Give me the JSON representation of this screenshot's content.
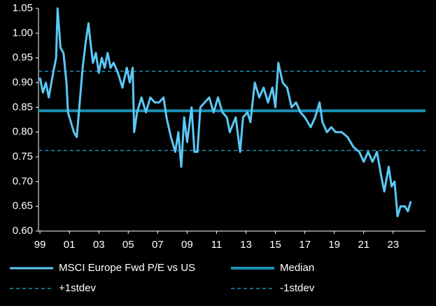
{
  "chart_data": {
    "type": "line",
    "x": [
      1999.0,
      1999.2,
      1999.4,
      1999.6,
      1999.9,
      2000.1,
      2000.2,
      2000.4,
      2000.6,
      2000.8,
      2000.9,
      2001.1,
      2001.3,
      2001.5,
      2001.7,
      2001.9,
      2002.1,
      2002.3,
      2002.4,
      2002.6,
      2002.8,
      2003.0,
      2003.2,
      2003.4,
      2003.6,
      2003.8,
      2004.0,
      2004.3,
      2004.6,
      2004.9,
      2005.1,
      2005.3,
      2005.4,
      2005.6,
      2005.9,
      2006.2,
      2006.5,
      2006.8,
      2007.1,
      2007.4,
      2007.6,
      2007.9,
      2008.2,
      2008.4,
      2008.6,
      2008.8,
      2009.0,
      2009.3,
      2009.5,
      2009.7,
      2009.9,
      2010.2,
      2010.5,
      2010.8,
      2011.1,
      2011.4,
      2011.7,
      2011.9,
      2012.3,
      2012.6,
      2012.8,
      2013.1,
      2013.3,
      2013.6,
      2013.9,
      2014.2,
      2014.5,
      2014.8,
      2015.0,
      2015.2,
      2015.5,
      2015.8,
      2016.1,
      2016.4,
      2016.7,
      2017.0,
      2017.4,
      2017.7,
      2018.0,
      2018.2,
      2018.5,
      2018.8,
      2019.1,
      2019.5,
      2019.9,
      2020.3,
      2020.7,
      2021.0,
      2021.3,
      2021.6,
      2021.9,
      2022.2,
      2022.4,
      2022.7,
      2022.9,
      2023.1,
      2023.3,
      2023.5,
      2023.8,
      2024.0,
      2024.2
    ],
    "series": [
      {
        "name": "MSCI Europe Fwd P/E vs US",
        "color": "#5bc8f5",
        "values": [
          0.91,
          0.88,
          0.9,
          0.87,
          0.92,
          0.95,
          1.05,
          0.97,
          0.96,
          0.9,
          0.84,
          0.82,
          0.8,
          0.79,
          0.86,
          0.93,
          0.98,
          1.02,
          0.99,
          0.94,
          0.96,
          0.92,
          0.95,
          0.93,
          0.96,
          0.93,
          0.94,
          0.92,
          0.89,
          0.93,
          0.9,
          0.93,
          0.8,
          0.84,
          0.87,
          0.84,
          0.87,
          0.86,
          0.86,
          0.87,
          0.83,
          0.79,
          0.76,
          0.8,
          0.73,
          0.83,
          0.78,
          0.85,
          0.76,
          0.76,
          0.85,
          0.86,
          0.87,
          0.84,
          0.87,
          0.84,
          0.83,
          0.8,
          0.83,
          0.76,
          0.83,
          0.84,
          0.82,
          0.9,
          0.87,
          0.89,
          0.86,
          0.89,
          0.85,
          0.94,
          0.9,
          0.89,
          0.85,
          0.86,
          0.84,
          0.83,
          0.81,
          0.83,
          0.86,
          0.82,
          0.8,
          0.81,
          0.8,
          0.8,
          0.79,
          0.77,
          0.76,
          0.74,
          0.76,
          0.74,
          0.76,
          0.71,
          0.68,
          0.73,
          0.69,
          0.7,
          0.63,
          0.65,
          0.65,
          0.64,
          0.66
        ]
      }
    ],
    "reference_lines": [
      {
        "name": "Median",
        "value": 0.843,
        "color": "#1b8fb5",
        "dashed": false
      },
      {
        "name": "+1stdev",
        "value": 0.923,
        "color": "#1b8fb5",
        "dashed": true
      },
      {
        "name": "-1stdev",
        "value": 0.763,
        "color": "#1b8fb5",
        "dashed": true
      }
    ],
    "xlim": [
      1998.9,
      2025.2
    ],
    "xticks": [
      {
        "value": 1999,
        "label": "99"
      },
      {
        "value": 2001,
        "label": "01"
      },
      {
        "value": 2003,
        "label": "03"
      },
      {
        "value": 2005,
        "label": "05"
      },
      {
        "value": 2007,
        "label": "07"
      },
      {
        "value": 2009,
        "label": "09"
      },
      {
        "value": 2011,
        "label": "11"
      },
      {
        "value": 2013,
        "label": "13"
      },
      {
        "value": 2015,
        "label": "15"
      },
      {
        "value": 2017,
        "label": "17"
      },
      {
        "value": 2019,
        "label": "19"
      },
      {
        "value": 2021,
        "label": "21"
      },
      {
        "value": 2023,
        "label": "23"
      }
    ],
    "ylim": [
      0.6,
      1.05
    ],
    "yticks": [
      {
        "value": 0.6,
        "label": "0.60"
      },
      {
        "value": 0.65,
        "label": "0.65"
      },
      {
        "value": 0.7,
        "label": "0.70"
      },
      {
        "value": 0.75,
        "label": "0.75"
      },
      {
        "value": 0.8,
        "label": "0.80"
      },
      {
        "value": 0.85,
        "label": "0.85"
      },
      {
        "value": 0.9,
        "label": "0.90"
      },
      {
        "value": 0.95,
        "label": "0.95"
      },
      {
        "value": 1.0,
        "label": "1.00"
      },
      {
        "value": 1.05,
        "label": "1.05"
      }
    ],
    "grid": false
  }
}
